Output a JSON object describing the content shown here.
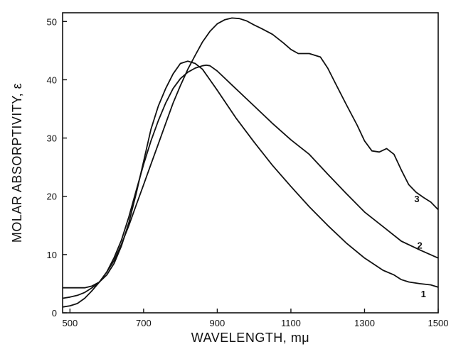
{
  "chart_data": {
    "type": "line",
    "title": "",
    "xlabel": "WAVELENGTH, mμ",
    "ylabel": "MOLAR ABSORPTIVITY, ε",
    "xlim": [
      480,
      1500
    ],
    "ylim": [
      0,
      51.5
    ],
    "x_ticks": [
      500,
      700,
      900,
      1100,
      1300,
      1500
    ],
    "y_ticks": [
      0,
      10,
      20,
      30,
      40,
      50
    ],
    "grid": false,
    "legend": "none",
    "series": [
      {
        "name": "1",
        "x": [
          480,
          500,
          520,
          540,
          560,
          580,
          600,
          620,
          640,
          660,
          680,
          700,
          720,
          740,
          760,
          780,
          800,
          820,
          840,
          860,
          880,
          900,
          950,
          1000,
          1050,
          1100,
          1150,
          1200,
          1250,
          1300,
          1350,
          1380,
          1400,
          1420,
          1450,
          1480,
          1500
        ],
        "y": [
          4.3,
          4.3,
          4.3,
          4.3,
          4.6,
          5.3,
          6.5,
          8.5,
          11.5,
          15.5,
          20.5,
          26.0,
          31.5,
          35.5,
          38.5,
          41.0,
          42.8,
          43.2,
          42.8,
          41.8,
          40.0,
          38.2,
          33.5,
          29.3,
          25.3,
          21.7,
          18.2,
          15.0,
          12.0,
          9.4,
          7.3,
          6.5,
          5.7,
          5.3,
          5.0,
          4.8,
          4.4
        ]
      },
      {
        "name": "2",
        "x": [
          480,
          500,
          520,
          540,
          560,
          580,
          600,
          620,
          640,
          660,
          680,
          700,
          720,
          740,
          760,
          780,
          800,
          820,
          840,
          860,
          870,
          880,
          900,
          950,
          1000,
          1050,
          1100,
          1150,
          1200,
          1250,
          1300,
          1350,
          1400,
          1450,
          1500
        ],
        "y": [
          2.5,
          2.7,
          3.0,
          3.5,
          4.3,
          5.3,
          7.0,
          9.5,
          12.5,
          16.5,
          21.0,
          25.5,
          29.5,
          33.0,
          36.0,
          38.5,
          40.2,
          41.3,
          42.0,
          42.4,
          42.5,
          42.4,
          41.5,
          38.5,
          35.5,
          32.5,
          29.7,
          27.2,
          23.8,
          20.5,
          17.3,
          14.8,
          12.3,
          10.8,
          9.4
        ]
      },
      {
        "name": "3",
        "x": [
          480,
          500,
          520,
          540,
          560,
          580,
          600,
          620,
          640,
          660,
          680,
          700,
          720,
          740,
          760,
          780,
          800,
          820,
          840,
          860,
          880,
          900,
          920,
          940,
          960,
          980,
          1000,
          1020,
          1050,
          1080,
          1100,
          1120,
          1150,
          1180,
          1200,
          1220,
          1250,
          1280,
          1300,
          1320,
          1340,
          1360,
          1380,
          1400,
          1420,
          1440,
          1460,
          1480,
          1500
        ],
        "y": [
          1.0,
          1.2,
          1.6,
          2.5,
          3.8,
          5.3,
          7.0,
          9.0,
          11.8,
          15.0,
          18.5,
          22.0,
          25.5,
          29.0,
          32.5,
          36.0,
          39.0,
          41.8,
          44.2,
          46.5,
          48.3,
          49.6,
          50.3,
          50.6,
          50.5,
          50.1,
          49.4,
          48.8,
          47.8,
          46.3,
          45.2,
          44.5,
          44.5,
          43.9,
          42.0,
          39.5,
          35.8,
          32.2,
          29.5,
          27.8,
          27.6,
          28.2,
          27.2,
          24.5,
          22.0,
          20.7,
          19.8,
          19.0,
          17.7
        ]
      }
    ]
  }
}
